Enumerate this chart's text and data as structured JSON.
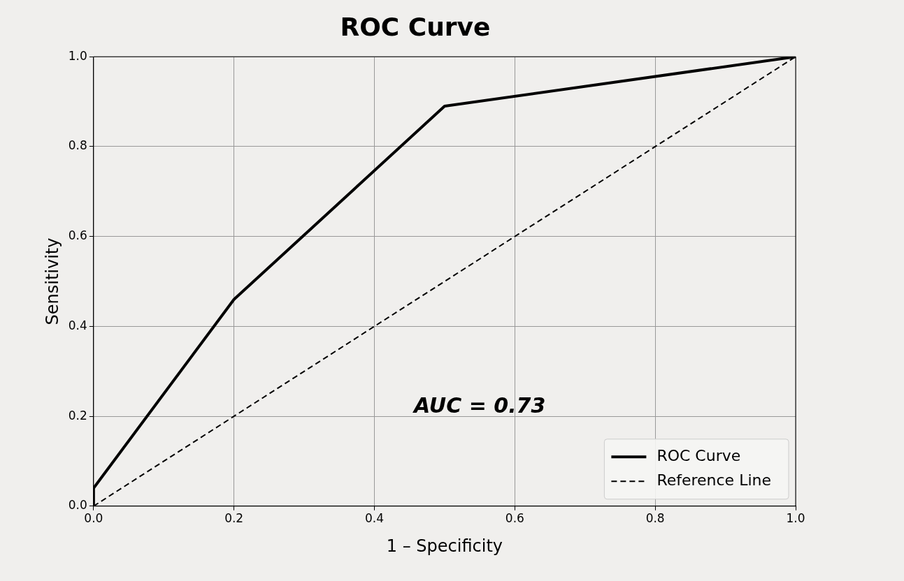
{
  "chart_data": {
    "type": "line",
    "title": "ROC Curve",
    "xlabel": "1 – Specificity",
    "ylabel": "Sensitivity",
    "series": [
      {
        "name": "ROC Curve",
        "color": "#000000",
        "x": [
          0,
          0,
          0.2,
          0.5,
          1
        ],
        "values": [
          0,
          0.04,
          0.46,
          0.89,
          1
        ],
        "line_style": "solid"
      },
      {
        "name": "Reference Line",
        "color": "#000000",
        "x": [
          0,
          1
        ],
        "values": [
          0,
          1
        ],
        "line_style": "dashed"
      }
    ],
    "xlim": [
      0,
      1
    ],
    "ylim": [
      0,
      1
    ],
    "xticks": [
      {
        "value": 0,
        "label": "0.0"
      },
      0.2,
      0.4,
      0.6,
      0.8,
      {
        "value": 1,
        "label": "1.0"
      }
    ],
    "yticks": [
      {
        "value": 0,
        "label": "0.0"
      },
      0.2,
      0.4,
      0.6,
      0.8,
      {
        "value": 1,
        "label": "1.0"
      }
    ],
    "annotations": [
      "AUC = 0.73"
    ],
    "grid": true,
    "legend": "bottom right",
    "marker": "none"
  }
}
